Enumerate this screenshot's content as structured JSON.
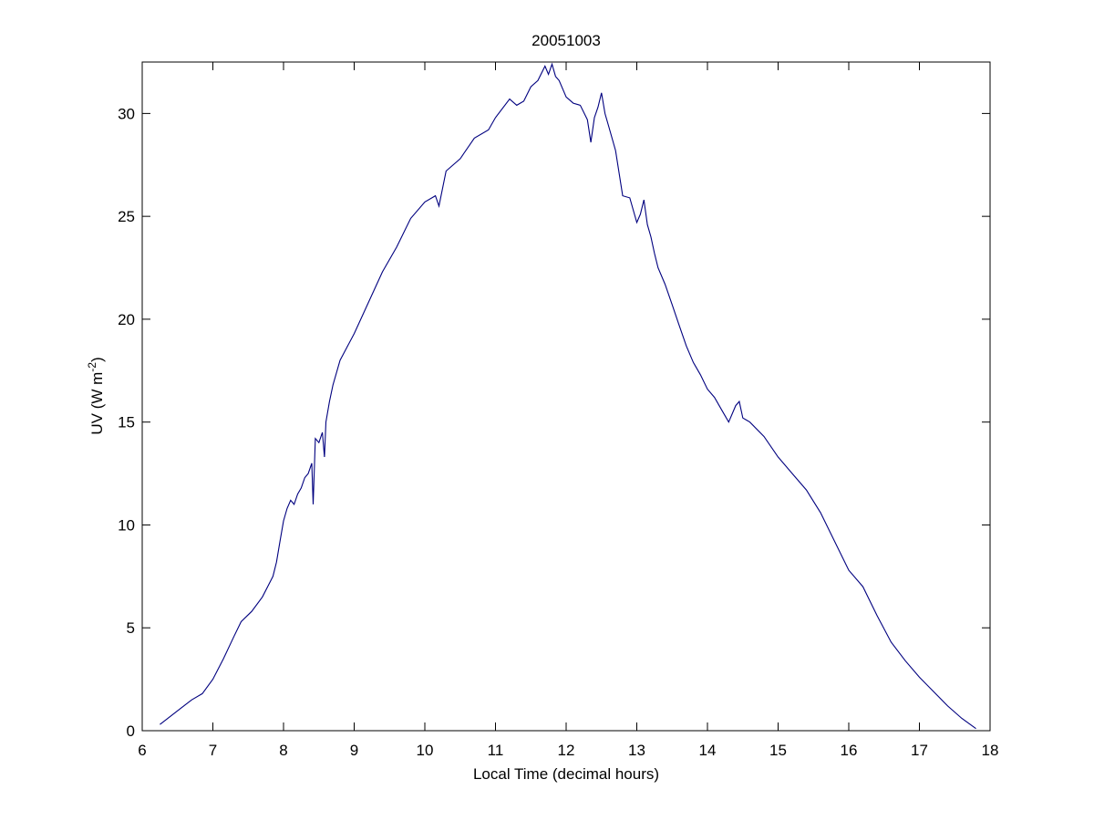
{
  "chart_data": {
    "type": "line",
    "title": "20051003",
    "xlabel": "Local Time (decimal hours)",
    "ylabel": "UV (W m",
    "ylabel_exponent": "-2",
    "ylabel_suffix": ")",
    "xlim": [
      6,
      18
    ],
    "ylim": [
      0,
      32.5
    ],
    "xticks": [
      6,
      7,
      8,
      9,
      10,
      11,
      12,
      13,
      14,
      15,
      16,
      17,
      18
    ],
    "yticks": [
      0,
      5,
      10,
      15,
      20,
      25,
      30
    ],
    "grid": false,
    "legend": "none",
    "series_color": "#00007f",
    "series": [
      {
        "x": [
          6.25,
          6.4,
          6.55,
          6.7,
          6.85,
          7.0,
          7.15,
          7.3,
          7.4,
          7.55,
          7.7,
          7.85,
          7.9,
          7.95,
          8.0,
          8.05,
          8.1,
          8.15,
          8.2,
          8.25,
          8.3,
          8.35,
          8.4,
          8.42,
          8.45,
          8.5,
          8.55,
          8.58,
          8.6,
          8.65,
          8.7,
          8.8,
          9.0,
          9.2,
          9.4,
          9.6,
          9.8,
          10.0,
          10.15,
          10.2,
          10.3,
          10.5,
          10.7,
          10.9,
          11.0,
          11.2,
          11.3,
          11.4,
          11.5,
          11.6,
          11.7,
          11.75,
          11.8,
          11.85,
          11.9,
          12.0,
          12.1,
          12.2,
          12.3,
          12.35,
          12.4,
          12.45,
          12.5,
          12.55,
          12.6,
          12.7,
          12.8,
          12.9,
          13.0,
          13.05,
          13.1,
          13.15,
          13.2,
          13.25,
          13.3,
          13.4,
          13.5,
          13.6,
          13.7,
          13.8,
          13.9,
          14.0,
          14.1,
          14.2,
          14.3,
          14.4,
          14.45,
          14.5,
          14.55,
          14.6,
          14.8,
          15.0,
          15.2,
          15.4,
          15.6,
          15.8,
          16.0,
          16.2,
          16.4,
          16.6,
          16.8,
          17.0,
          17.2,
          17.4,
          17.6,
          17.8
        ],
        "y": [
          0.3,
          0.7,
          1.1,
          1.5,
          1.8,
          2.5,
          3.5,
          4.6,
          5.3,
          5.8,
          6.5,
          7.5,
          8.2,
          9.2,
          10.2,
          10.8,
          11.2,
          11.0,
          11.5,
          11.8,
          12.3,
          12.5,
          13.0,
          11.0,
          14.2,
          14.0,
          14.5,
          13.3,
          15.0,
          16.0,
          16.8,
          18.0,
          19.3,
          20.8,
          22.3,
          23.5,
          24.9,
          25.7,
          26.0,
          25.5,
          27.2,
          27.8,
          28.8,
          29.2,
          29.8,
          30.7,
          30.4,
          30.6,
          31.3,
          31.6,
          32.3,
          31.9,
          32.4,
          31.8,
          31.6,
          30.8,
          30.5,
          30.4,
          29.7,
          28.6,
          29.8,
          30.3,
          31.0,
          30.0,
          29.4,
          28.2,
          26.0,
          25.9,
          24.7,
          25.1,
          25.8,
          24.6,
          24.0,
          23.2,
          22.5,
          21.7,
          20.7,
          19.7,
          18.7,
          17.9,
          17.3,
          16.6,
          16.2,
          15.6,
          15.0,
          15.8,
          16.0,
          15.2,
          15.1,
          15.0,
          14.3,
          13.3,
          12.5,
          11.7,
          10.6,
          9.2,
          7.8,
          7.0,
          5.6,
          4.3,
          3.4,
          2.6,
          1.9,
          1.2,
          0.6,
          0.1
        ]
      }
    ]
  }
}
